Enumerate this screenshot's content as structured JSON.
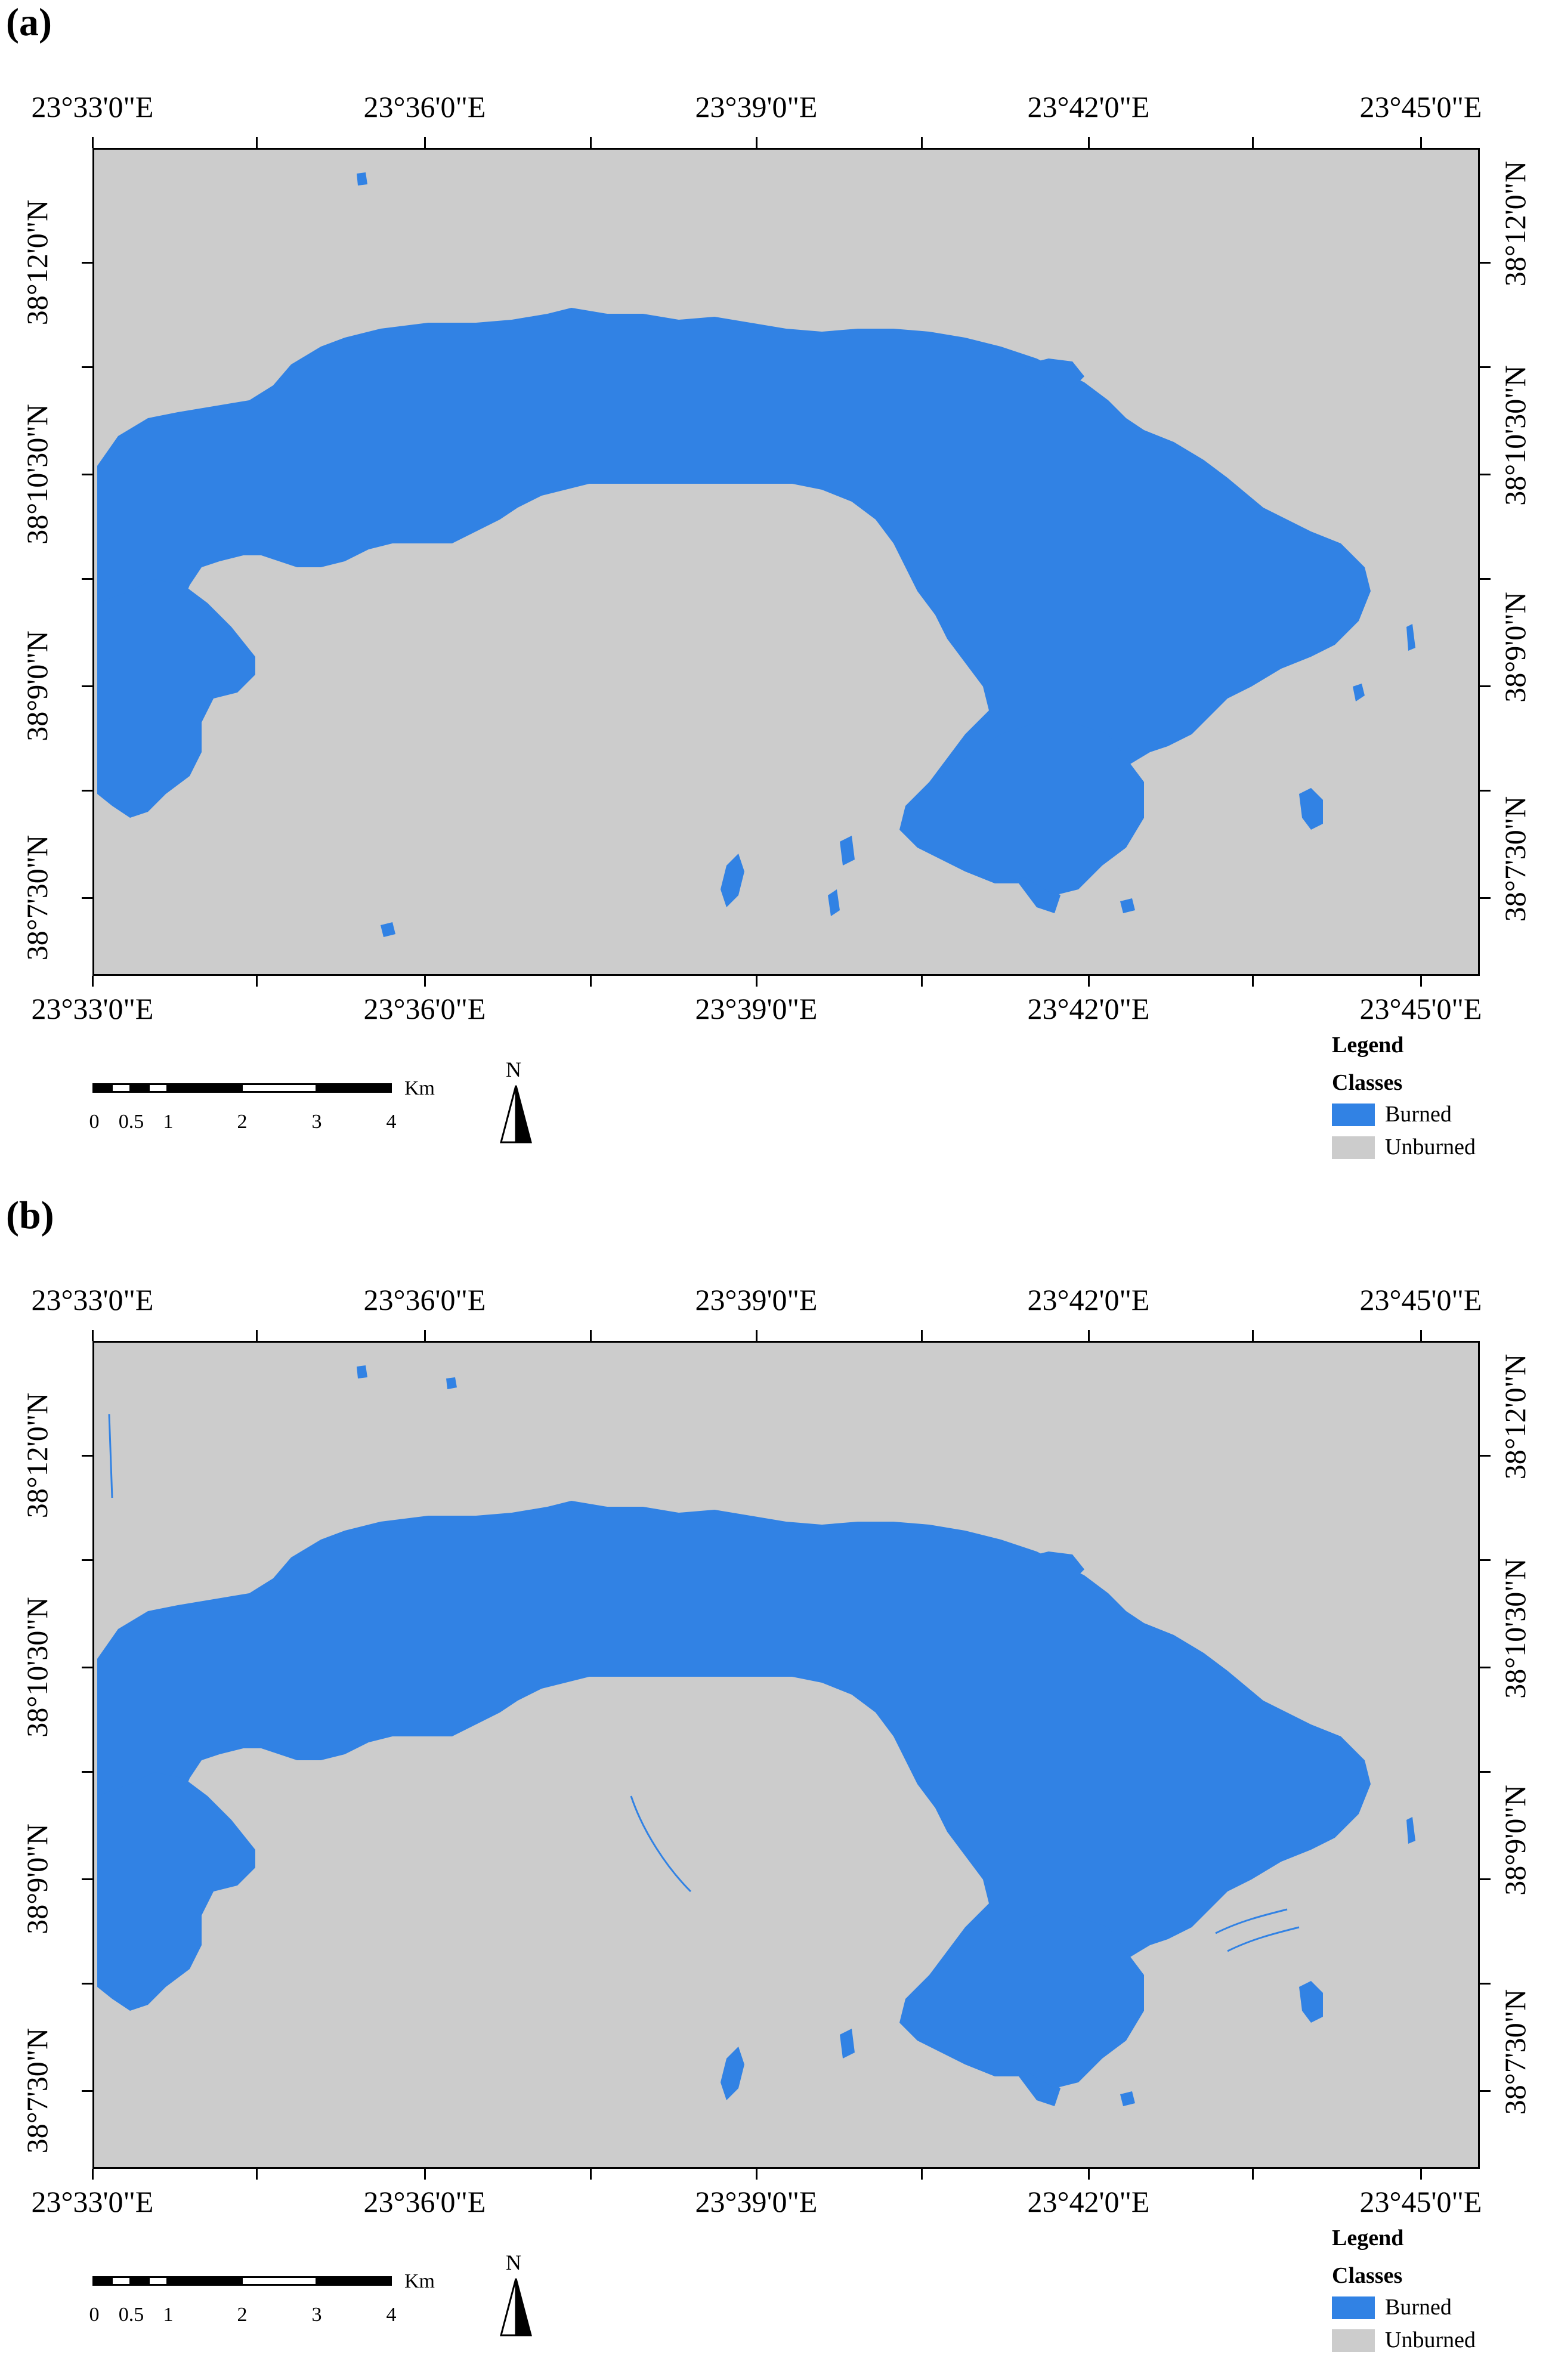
{
  "panels": [
    {
      "label": "(a)",
      "top_labels": [
        "23°33'0\"E",
        "23°36'0\"E",
        "23°39'0\"E",
        "23°42'0\"E",
        "23°45'0\"E"
      ],
      "bottom_labels": [
        "23°33'0\"E",
        "23°36'0\"E",
        "23°39'0\"E",
        "23°42'0\"E",
        "23°45'0\"E"
      ],
      "left_labels": [
        "38°12'0\"N",
        "38°10'30\"N",
        "38°9'0\"N",
        "38°7'30\"N"
      ],
      "right_labels": [
        "38°12'0\"N",
        "38°10'30\"N",
        "38°9'0\"N",
        "38°7'30\"N"
      ],
      "scale_labels": [
        "0",
        "0.5",
        "1",
        "2",
        "3",
        "4"
      ],
      "scale_unit": "Km",
      "north": "N",
      "legend_title": "Legend",
      "legend_subtitle": "Classes",
      "legend_items": [
        "Burned",
        "Unburned"
      ]
    },
    {
      "label": "(b)",
      "top_labels": [
        "23°33'0\"E",
        "23°36'0\"E",
        "23°39'0\"E",
        "23°42'0\"E",
        "23°45'0\"E"
      ],
      "bottom_labels": [
        "23°33'0\"E",
        "23°36'0\"E",
        "23°39'0\"E",
        "23°42'0\"E",
        "23°45'0\"E"
      ],
      "left_labels": [
        "38°12'0\"N",
        "38°10'30\"N",
        "38°9'0\"N",
        "38°7'30\"N"
      ],
      "right_labels": [
        "38°12'0\"N",
        "38°10'30\"N",
        "38°9'0\"N",
        "38°7'30\"N"
      ],
      "scale_labels": [
        "0",
        "0.5",
        "1",
        "2",
        "3",
        "4"
      ],
      "scale_unit": "Km",
      "north": "N",
      "legend_title": "Legend",
      "legend_subtitle": "Classes",
      "legend_items": [
        "Burned",
        "Unburned"
      ]
    }
  ],
  "colors": {
    "burned": "#3182e4",
    "unburned": "#cccccc"
  }
}
